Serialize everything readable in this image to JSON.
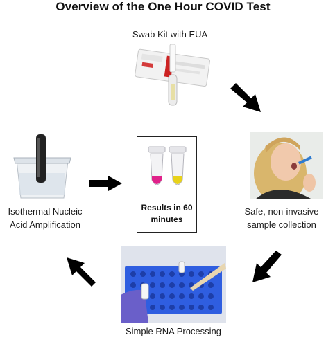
{
  "title": "Overview of the One Hour COVID Test",
  "steps": {
    "swab_kit": "Swab Kit with EUA",
    "sample_collection_line1": "Safe, non-invasive",
    "sample_collection_line2": "sample collection",
    "rna_processing": "Simple RNA Processing",
    "amplification_line1": "Isothermal Nucleic",
    "amplification_line2": "Acid Amplification",
    "results_line1": "Results in 60",
    "results_line2": "minutes"
  },
  "colors": {
    "arrow": "#000000",
    "tube_positive": "#e0218a",
    "tube_negative": "#e8d21a",
    "rack_blue": "#2f5ee0",
    "glove_purple": "#6a5fc9"
  }
}
